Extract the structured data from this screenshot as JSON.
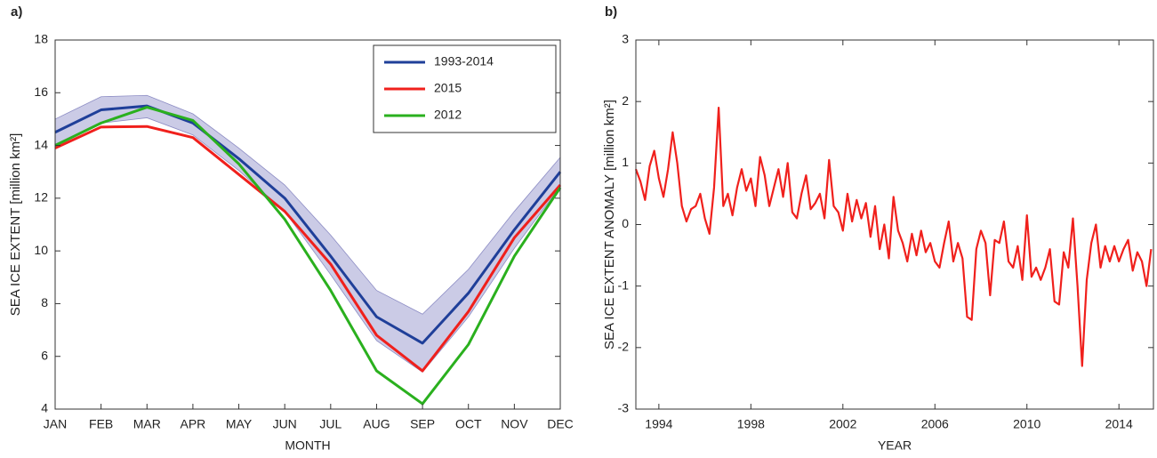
{
  "chart_data": [
    {
      "type": "line",
      "title": "a)",
      "xlabel": "MONTH",
      "ylabel": "SEA ICE EXTENT [million km²]",
      "categories": [
        "JAN",
        "FEB",
        "MAR",
        "APR",
        "MAY",
        "JUN",
        "JUL",
        "AUG",
        "SEP",
        "OCT",
        "NOV",
        "DEC"
      ],
      "band": {
        "upper": [
          15.0,
          15.85,
          15.9,
          15.2,
          13.9,
          12.5,
          10.6,
          8.5,
          7.6,
          9.3,
          11.5,
          13.55
        ],
        "lower": [
          14.05,
          14.85,
          15.05,
          14.4,
          13.05,
          11.5,
          9.1,
          6.6,
          5.4,
          7.5,
          10.1,
          12.45
        ],
        "color": "#cbcbe6"
      },
      "series": [
        {
          "name": "1993-2014",
          "color": "#1f3f99",
          "values": [
            14.5,
            15.35,
            15.5,
            14.85,
            13.5,
            12.0,
            9.8,
            7.5,
            6.5,
            8.4,
            10.8,
            13.0
          ]
        },
        {
          "name": "2015",
          "color": "#f0201c",
          "values": [
            13.9,
            14.7,
            14.72,
            14.3,
            12.9,
            11.5,
            9.5,
            6.8,
            5.45,
            7.7,
            10.5,
            12.5
          ]
        },
        {
          "name": "2012",
          "color": "#2ab01e",
          "values": [
            14.0,
            14.85,
            15.45,
            14.95,
            13.3,
            11.2,
            8.5,
            5.45,
            4.2,
            6.45,
            9.8,
            12.4
          ]
        }
      ],
      "ylim": [
        4,
        18
      ],
      "yticks": [
        4,
        6,
        8,
        10,
        12,
        14,
        16,
        18
      ],
      "legend": "upper right",
      "grid": false
    },
    {
      "type": "line",
      "title": "b)",
      "xlabel": "YEAR",
      "ylabel": "SEA ICE EXTENT ANOMALY [million km²]",
      "x": [
        1993.0,
        1993.2,
        1993.4,
        1993.6,
        1993.8,
        1994.0,
        1994.2,
        1994.4,
        1994.6,
        1994.8,
        1995.0,
        1995.2,
        1995.4,
        1995.6,
        1995.8,
        1996.0,
        1996.2,
        1996.4,
        1996.6,
        1996.8,
        1997.0,
        1997.2,
        1997.4,
        1997.6,
        1997.8,
        1998.0,
        1998.2,
        1998.4,
        1998.6,
        1998.8,
        1999.0,
        1999.2,
        1999.4,
        1999.6,
        1999.8,
        2000.0,
        2000.2,
        2000.4,
        2000.6,
        2000.8,
        2001.0,
        2001.2,
        2001.4,
        2001.6,
        2001.8,
        2002.0,
        2002.2,
        2002.4,
        2002.6,
        2002.8,
        2003.0,
        2003.2,
        2003.4,
        2003.6,
        2003.8,
        2004.0,
        2004.2,
        2004.4,
        2004.6,
        2004.8,
        2005.0,
        2005.2,
        2005.4,
        2005.6,
        2005.8,
        2006.0,
        2006.2,
        2006.4,
        2006.6,
        2006.8,
        2007.0,
        2007.2,
        2007.4,
        2007.6,
        2007.8,
        2008.0,
        2008.2,
        2008.4,
        2008.6,
        2008.8,
        2009.0,
        2009.2,
        2009.4,
        2009.6,
        2009.8,
        2010.0,
        2010.2,
        2010.4,
        2010.6,
        2010.8,
        2011.0,
        2011.2,
        2011.4,
        2011.6,
        2011.8,
        2012.0,
        2012.2,
        2012.4,
        2012.6,
        2012.8,
        2013.0,
        2013.2,
        2013.4,
        2013.6,
        2013.8,
        2014.0,
        2014.2,
        2014.4,
        2014.6,
        2014.8,
        2015.0,
        2015.2,
        2015.4
      ],
      "series": [
        {
          "color": "#f0201c",
          "values": [
            0.9,
            0.7,
            0.4,
            0.95,
            1.2,
            0.75,
            0.45,
            0.9,
            1.5,
            1.0,
            0.3,
            0.05,
            0.25,
            0.3,
            0.5,
            0.1,
            -0.15,
            0.6,
            1.9,
            0.3,
            0.5,
            0.15,
            0.6,
            0.9,
            0.55,
            0.75,
            0.3,
            1.1,
            0.8,
            0.3,
            0.6,
            0.9,
            0.45,
            1.0,
            0.2,
            0.1,
            0.5,
            0.8,
            0.25,
            0.35,
            0.5,
            0.1,
            1.05,
            0.3,
            0.2,
            -0.1,
            0.5,
            0.05,
            0.4,
            0.1,
            0.35,
            -0.2,
            0.3,
            -0.4,
            0.0,
            -0.55,
            0.45,
            -0.1,
            -0.3,
            -0.6,
            -0.15,
            -0.5,
            -0.1,
            -0.45,
            -0.3,
            -0.6,
            -0.7,
            -0.3,
            0.05,
            -0.6,
            -0.3,
            -0.55,
            -1.5,
            -1.55,
            -0.4,
            -0.1,
            -0.3,
            -1.15,
            -0.25,
            -0.3,
            0.05,
            -0.6,
            -0.7,
            -0.35,
            -0.9,
            0.15,
            -0.85,
            -0.7,
            -0.9,
            -0.7,
            -0.4,
            -1.25,
            -1.3,
            -0.45,
            -0.7,
            0.1,
            -1.0,
            -2.3,
            -0.9,
            -0.3,
            0.0,
            -0.7,
            -0.35,
            -0.6,
            -0.35,
            -0.6,
            -0.4,
            -0.25,
            -0.75,
            -0.45,
            -0.6,
            -1.0,
            -0.4
          ]
        }
      ],
      "xlim": [
        1993,
        2015.5
      ],
      "xticks": [
        1994,
        1998,
        2002,
        2006,
        2010,
        2014
      ],
      "ylim": [
        -3,
        3
      ],
      "yticks": [
        -3,
        -2,
        -1,
        0,
        1,
        2,
        3
      ],
      "grid": false
    }
  ]
}
